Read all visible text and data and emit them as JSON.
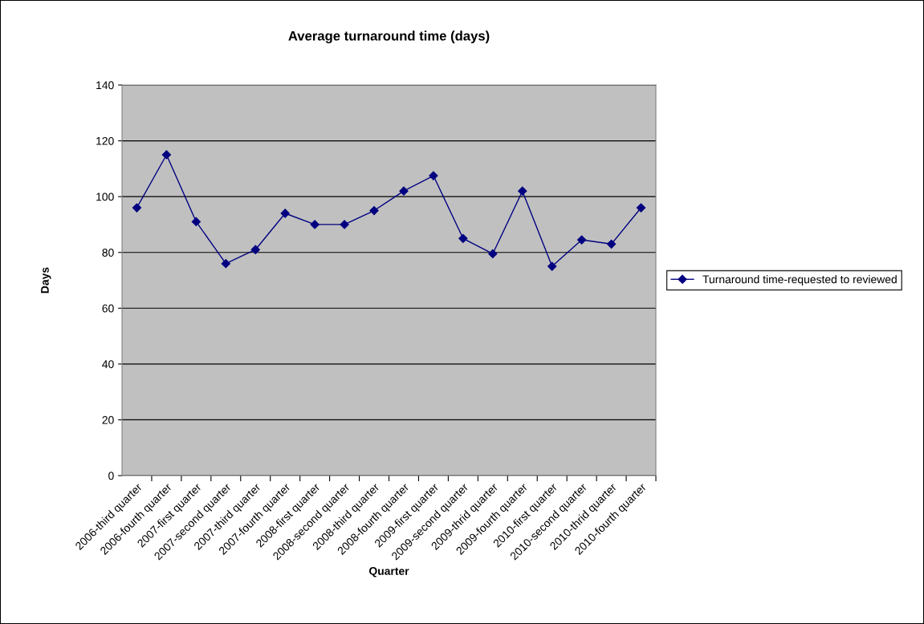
{
  "chart_data": {
    "type": "line",
    "title": "Average turnaround time (days)",
    "xlabel": "Quarter",
    "ylabel": "Days",
    "categories": [
      "2006-third quarter",
      "2006-fourth quarter",
      "2007-first quarter",
      "2007-second quarter",
      "2007-third quarter",
      "2007-fourth quarter",
      "2008-first quarter",
      "2008-second quarter",
      "2008-third quarter",
      "2008-fourth quarter",
      "2009-first quarter",
      "2009-second quarter",
      "2009-thrid quarter",
      "2009-fourth quarter",
      "2010-first quarter",
      "2010-second quarter",
      "2010-thrid quarter",
      "2010-fourth quarter"
    ],
    "series": [
      {
        "name": "Turnaround time-requested to reviewed",
        "color": "#000080",
        "values": [
          96,
          115,
          91,
          76,
          81,
          94,
          90,
          90,
          95,
          102,
          107.5,
          85,
          79.5,
          102,
          75,
          84.5,
          83,
          96
        ]
      }
    ],
    "ylim": [
      0,
      140
    ],
    "yticks": [
      0,
      20,
      40,
      60,
      80,
      100,
      120,
      140
    ],
    "grid": "y",
    "legend": "right",
    "marker": "diamond",
    "line_style": "solid"
  }
}
